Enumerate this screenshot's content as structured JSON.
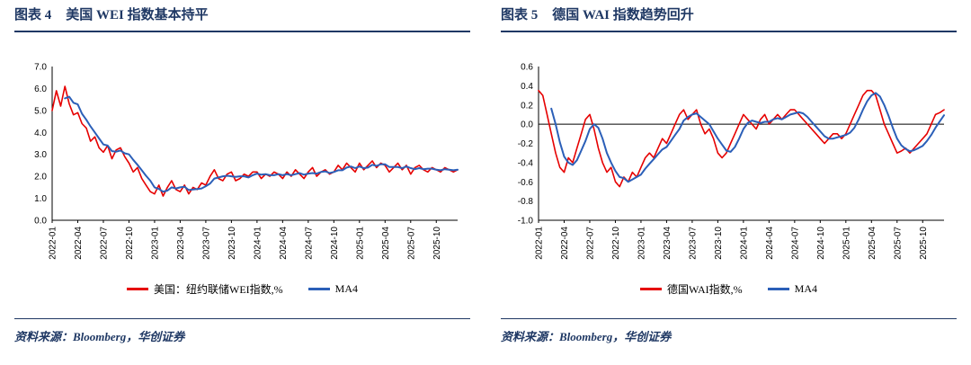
{
  "colors": {
    "title_navy": "#1f3864",
    "series_red": "#e60000",
    "series_blue": "#2b5fb8",
    "axis_black": "#000000"
  },
  "figures": [
    {
      "header_label": "图表 4",
      "header_title": "美国 WEI 指数基本持平",
      "source": "资料来源：Bloomberg，华创证券"
    },
    {
      "header_label": "图表 5",
      "header_title": "德国 WAI 指数趋势回升",
      "source": "资料来源：Bloomberg，华创证券"
    }
  ],
  "chart_data": [
    {
      "type": "line",
      "title": "美国 WEI 指数基本持平",
      "xlabel": "",
      "ylabel": "",
      "grid": false,
      "legend_position": "bottom",
      "ylim": [
        0,
        7
      ],
      "ytick_step": 1,
      "x_tick_every": 6,
      "x_tick_labels": [
        "2022-01",
        "2022-04",
        "2022-07",
        "2022-10",
        "2023-01",
        "2023-04",
        "2023-07",
        "2023-10",
        "2024-01",
        "2024-04",
        "2024-07",
        "2024-10",
        "2025-01",
        "2025-04",
        "2025-07",
        "2025-10"
      ],
      "x_resolution": "semi-monthly points, 2022-01 through 2025-12",
      "series": [
        {
          "name": "美国：纽约联储WEI指数,%",
          "color": "#e60000",
          "values": [
            5.0,
            5.9,
            5.2,
            6.1,
            5.3,
            4.8,
            4.9,
            4.4,
            4.2,
            3.6,
            3.8,
            3.3,
            3.1,
            3.4,
            2.8,
            3.2,
            3.3,
            2.9,
            2.6,
            2.2,
            2.4,
            1.9,
            1.6,
            1.3,
            1.2,
            1.6,
            1.1,
            1.5,
            1.8,
            1.4,
            1.3,
            1.6,
            1.2,
            1.5,
            1.4,
            1.7,
            1.6,
            2.0,
            2.3,
            1.9,
            1.8,
            2.1,
            2.2,
            1.8,
            1.9,
            2.1,
            2.0,
            2.2,
            2.2,
            1.9,
            2.1,
            2.0,
            2.2,
            2.1,
            1.9,
            2.2,
            2.0,
            2.3,
            2.1,
            1.9,
            2.2,
            2.4,
            2.0,
            2.2,
            2.3,
            2.1,
            2.2,
            2.5,
            2.3,
            2.6,
            2.4,
            2.2,
            2.6,
            2.3,
            2.5,
            2.7,
            2.4,
            2.6,
            2.5,
            2.2,
            2.4,
            2.6,
            2.3,
            2.5,
            2.1,
            2.4,
            2.5,
            2.3,
            2.2,
            2.4,
            2.3,
            2.2,
            2.4,
            2.3,
            2.2,
            2.3
          ]
        },
        {
          "name": "MA4",
          "color": "#2b5fb8",
          "derived": "trailing 4-period moving average of series 0"
        }
      ]
    },
    {
      "type": "line",
      "title": "德国 WAI 指数趋势回升",
      "xlabel": "",
      "ylabel": "",
      "grid": false,
      "legend_position": "bottom",
      "ylim": [
        -1.0,
        0.6
      ],
      "ytick_step": 0.2,
      "x_tick_every": 6,
      "x_tick_labels": [
        "2022-01",
        "2022-04",
        "2022-07",
        "2022-10",
        "2023-01",
        "2023-04",
        "2023-07",
        "2023-10",
        "2024-01",
        "2024-04",
        "2024-07",
        "2024-10",
        "2025-01",
        "2025-04",
        "2025-07",
        "2025-10"
      ],
      "x_resolution": "semi-monthly points, 2022-01 through 2025-12",
      "series": [
        {
          "name": "德国WAI指数,%",
          "color": "#e60000",
          "values": [
            0.35,
            0.3,
            0.1,
            -0.1,
            -0.3,
            -0.45,
            -0.5,
            -0.35,
            -0.4,
            -0.25,
            -0.1,
            0.05,
            0.1,
            -0.05,
            -0.25,
            -0.4,
            -0.5,
            -0.45,
            -0.6,
            -0.65,
            -0.55,
            -0.6,
            -0.5,
            -0.55,
            -0.45,
            -0.35,
            -0.3,
            -0.35,
            -0.25,
            -0.15,
            -0.2,
            -0.1,
            0.0,
            0.1,
            0.15,
            0.05,
            0.1,
            0.15,
            0.0,
            -0.1,
            -0.05,
            -0.15,
            -0.3,
            -0.35,
            -0.3,
            -0.2,
            -0.1,
            0.0,
            0.1,
            0.05,
            0.0,
            -0.05,
            0.05,
            0.1,
            0.0,
            0.05,
            0.1,
            0.05,
            0.1,
            0.15,
            0.15,
            0.1,
            0.05,
            0.0,
            -0.05,
            -0.1,
            -0.15,
            -0.2,
            -0.15,
            -0.1,
            -0.1,
            -0.15,
            -0.1,
            0.0,
            0.1,
            0.2,
            0.3,
            0.35,
            0.35,
            0.3,
            0.15,
            0.0,
            -0.1,
            -0.2,
            -0.3,
            -0.28,
            -0.25,
            -0.3,
            -0.25,
            -0.2,
            -0.15,
            -0.1,
            0.0,
            0.1,
            0.12,
            0.15
          ]
        },
        {
          "name": "MA4",
          "color": "#2b5fb8",
          "derived": "trailing 4-period moving average of series 0"
        }
      ]
    }
  ]
}
